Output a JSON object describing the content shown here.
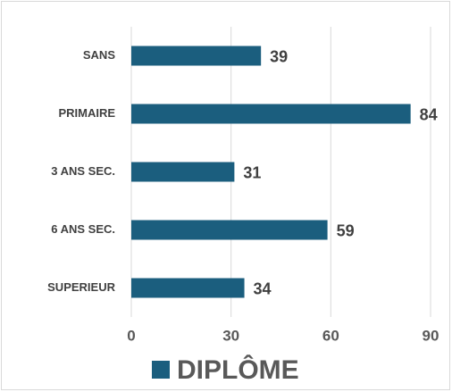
{
  "chart_data": {
    "type": "bar",
    "orientation": "horizontal",
    "categories": [
      "SANS",
      "PRIMAIRE",
      "3 ANS SEC.",
      "6 ANS SEC.",
      "SUPERIEUR"
    ],
    "series": [
      {
        "name": "DIPLÔME",
        "color": "#1b5e7e",
        "values": [
          39,
          84,
          31,
          59,
          34
        ]
      }
    ],
    "xlim": [
      0,
      90
    ],
    "xticks": [
      0,
      30,
      60,
      90
    ],
    "grid": true,
    "legend": "bottom"
  }
}
